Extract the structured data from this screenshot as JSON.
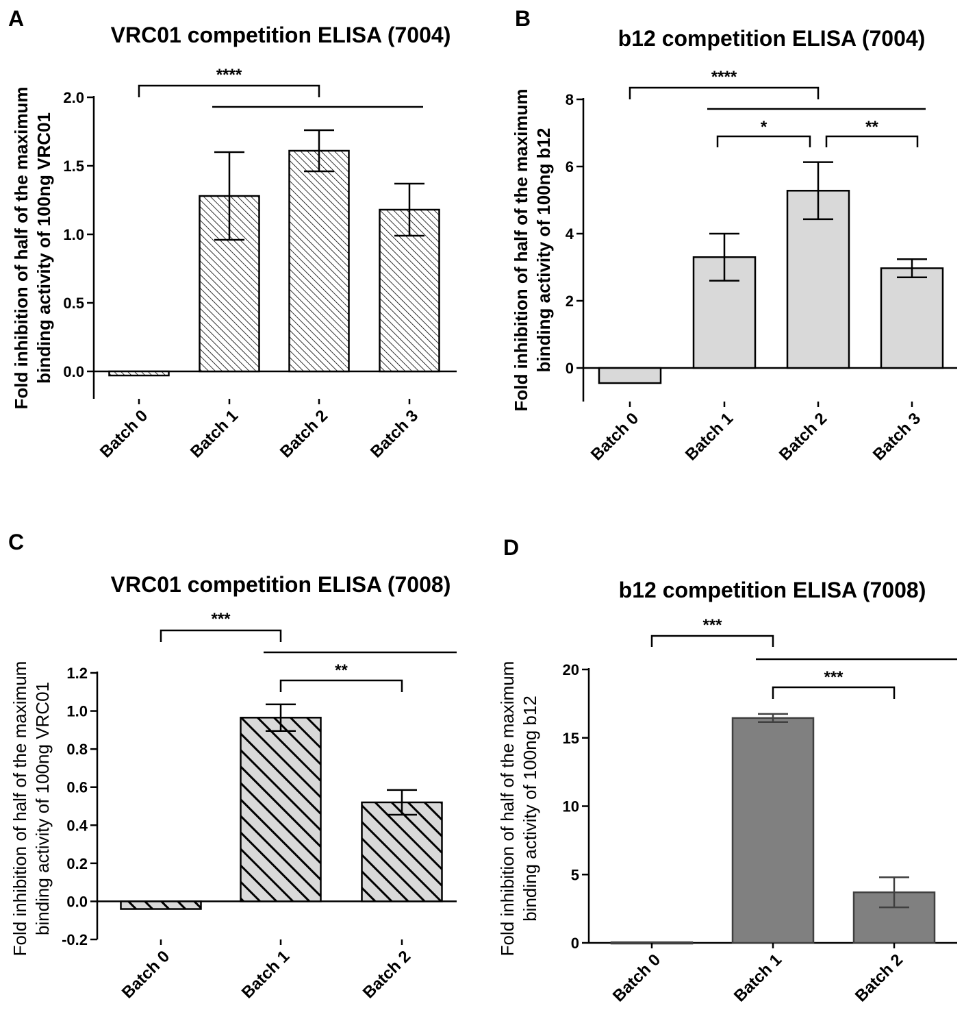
{
  "chart_data": [
    {
      "panel_label": "A",
      "type": "bar",
      "title": "VRC01 competition ELISA (7004)",
      "ylabel_lines": [
        "Fold inhibition of half of the maximum",
        "binding activity of 100ng VRC01"
      ],
      "categories": [
        "Batch 0",
        "Batch 1",
        "Batch 2",
        "Batch 3"
      ],
      "values": [
        -0.03,
        1.28,
        1.61,
        1.18
      ],
      "errors": [
        0,
        0.32,
        0.15,
        0.19
      ],
      "ylim": [
        -0.2,
        2.0
      ],
      "yticks": [
        "0.0",
        "0.5",
        "1.0",
        "1.5",
        "2.0"
      ],
      "ytick_values": [
        0,
        0.5,
        1.0,
        1.5,
        2.0
      ],
      "fill": "hatch-fine",
      "significance": [
        {
          "from": 0,
          "to": 2,
          "label": "****",
          "style": "bracket"
        },
        {
          "from": 1,
          "to": 3,
          "label": "",
          "style": "line"
        }
      ]
    },
    {
      "panel_label": "B",
      "type": "bar",
      "title": "b12 competition ELISA (7004)",
      "ylabel_lines": [
        "Fold inhibition of half of the maximum",
        "binding activity of 100ng b12"
      ],
      "categories": [
        "Batch 0",
        "Batch 1",
        "Batch 2",
        "Batch 3"
      ],
      "values": [
        -0.45,
        3.3,
        5.28,
        2.97
      ],
      "errors": [
        0,
        0.7,
        0.85,
        0.27
      ],
      "ylim": [
        -1,
        8
      ],
      "yticks": [
        "0",
        "2",
        "4",
        "6",
        "8"
      ],
      "ytick_values": [
        0,
        2,
        4,
        6,
        8
      ],
      "fill": "#d9d9d9",
      "significance": [
        {
          "from": 0,
          "to": 2,
          "label": "****",
          "style": "bracket"
        },
        {
          "from": 1,
          "to": 3,
          "label": "",
          "style": "line"
        },
        {
          "from": 1,
          "to": 2,
          "label": "*",
          "style": "bracket"
        },
        {
          "from": 2,
          "to": 3,
          "label": "**",
          "style": "bracket"
        }
      ]
    },
    {
      "panel_label": "C",
      "type": "bar",
      "title": "VRC01 competition ELISA (7008)",
      "ylabel_lines": [
        "Fold inhibition of half of the maximum",
        "binding activity of 100ng VRC01"
      ],
      "categories": [
        "Batch 0",
        "Batch 1",
        "Batch 2"
      ],
      "values": [
        -0.04,
        0.965,
        0.52
      ],
      "errors": [
        0,
        0.07,
        0.065
      ],
      "ylim": [
        -0.2,
        1.2
      ],
      "yticks": [
        "-0.2",
        "0.0",
        "0.2",
        "0.4",
        "0.6",
        "0.8",
        "1.0",
        "1.2"
      ],
      "ytick_values": [
        -0.2,
        0,
        0.2,
        0.4,
        0.6,
        0.8,
        1.0,
        1.2
      ],
      "fill": "hatch-bold",
      "significance": [
        {
          "from": 0,
          "to": 1,
          "label": "***",
          "style": "bracket"
        },
        {
          "from": 1,
          "to": 2,
          "label": "",
          "style": "line"
        },
        {
          "from": 1,
          "to": 2,
          "label": "**",
          "style": "bracket"
        }
      ]
    },
    {
      "panel_label": "D",
      "type": "bar",
      "title": "b12 competition ELISA (7008)",
      "ylabel_lines": [
        "Fold inhibition of half of the maximum",
        "binding activity of 100ng b12"
      ],
      "categories": [
        "Batch 0",
        "Batch 1",
        "Batch 2"
      ],
      "values": [
        0.05,
        16.45,
        3.7
      ],
      "errors": [
        0,
        0.3,
        1.1
      ],
      "ylim": [
        0,
        20
      ],
      "yticks": [
        "0",
        "5",
        "10",
        "15",
        "20"
      ],
      "ytick_values": [
        0,
        5,
        10,
        15,
        20
      ],
      "fill": "#808080",
      "significance": [
        {
          "from": 0,
          "to": 1,
          "label": "***",
          "style": "bracket"
        },
        {
          "from": 1,
          "to": 2,
          "label": "",
          "style": "line"
        },
        {
          "from": 1,
          "to": 2,
          "label": "***",
          "style": "bracket"
        }
      ]
    }
  ]
}
